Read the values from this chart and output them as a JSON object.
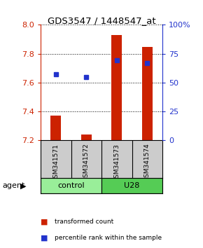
{
  "title": "GDS3547 / 1448547_at",
  "samples": [
    "GSM341571",
    "GSM341572",
    "GSM341573",
    "GSM341574"
  ],
  "bar_values": [
    7.37,
    7.24,
    7.93,
    7.845
  ],
  "dot_values": [
    7.66,
    7.64,
    7.755,
    7.735
  ],
  "ymin": 7.2,
  "ymax": 8.0,
  "yticks": [
    7.2,
    7.4,
    7.6,
    7.8,
    8.0
  ],
  "y2ticks": [
    0,
    25,
    50,
    75,
    100
  ],
  "bar_color": "#cc2200",
  "dot_color": "#2233cc",
  "bar_width": 0.35,
  "groups": [
    {
      "label": "control",
      "samples": [
        0,
        1
      ],
      "color": "#99ee99"
    },
    {
      "label": "U28",
      "samples": [
        2,
        3
      ],
      "color": "#55cc55"
    }
  ],
  "agent_label": "agent",
  "legend_items": [
    {
      "color": "#cc2200",
      "label": "transformed count"
    },
    {
      "color": "#2233cc",
      "label": "percentile rank within the sample"
    }
  ],
  "fig_width": 2.9,
  "fig_height": 3.54,
  "dpi": 100
}
